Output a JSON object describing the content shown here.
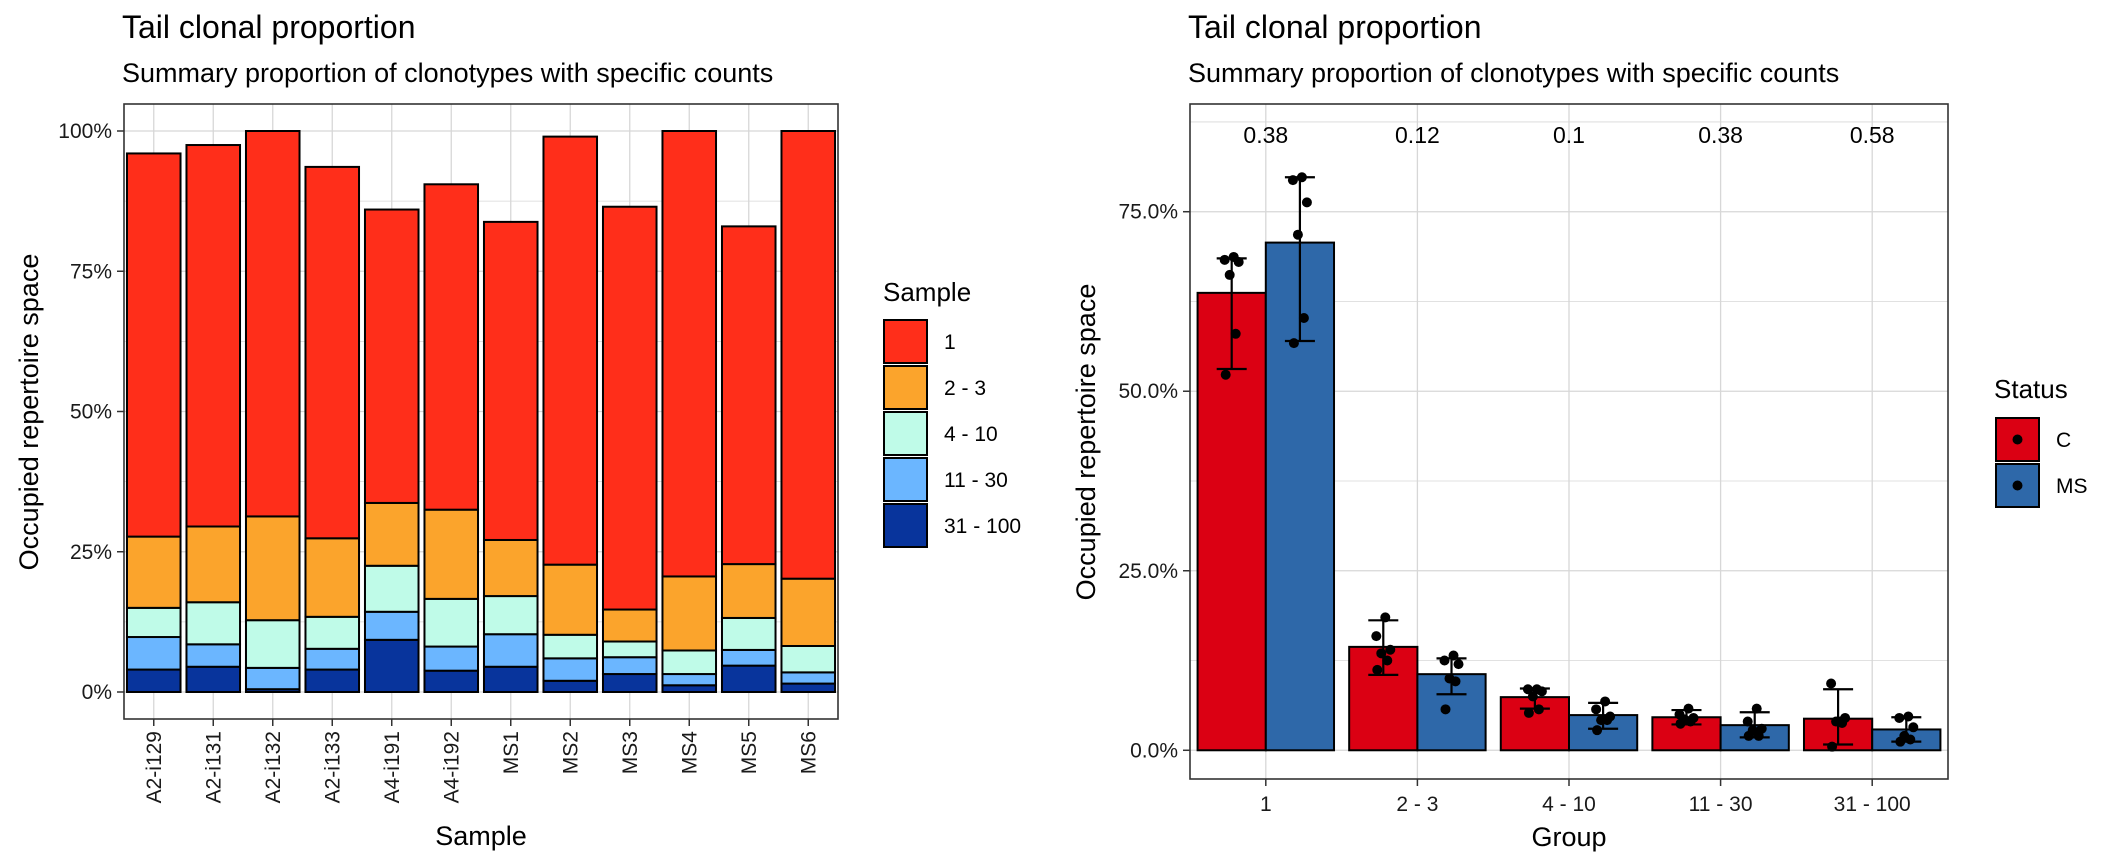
{
  "chart_data": [
    {
      "type": "bar",
      "stacked": true,
      "title": "Tail clonal proportion",
      "subtitle": "Summary proportion of clonotypes with specific counts",
      "xlabel": "Sample",
      "ylabel": "Occupied repertoire space",
      "ylim": [
        0,
        1
      ],
      "yticks": [
        "0%",
        "25%",
        "50%",
        "75%",
        "100%"
      ],
      "grid": true,
      "legend": {
        "title": "Sample",
        "position": "right"
      },
      "categories": [
        "A2-i129",
        "A2-i131",
        "A2-i132",
        "A2-i133",
        "A4-i191",
        "A4-i192",
        "MS1",
        "MS2",
        "MS3",
        "MS4",
        "MS5",
        "MS6"
      ],
      "series": [
        {
          "name": "31 - 100",
          "color": "#08349C",
          "values": [
            0.04,
            0.045,
            0.005,
            0.04,
            0.093,
            0.038,
            0.045,
            0.02,
            0.032,
            0.012,
            0.047,
            0.015
          ]
        },
        {
          "name": "11 - 30",
          "color": "#6BB6FF",
          "values": [
            0.058,
            0.04,
            0.038,
            0.037,
            0.05,
            0.043,
            0.058,
            0.04,
            0.03,
            0.02,
            0.028,
            0.02
          ]
        },
        {
          "name": "4 - 10",
          "color": "#BFFBE8",
          "values": [
            0.052,
            0.075,
            0.085,
            0.057,
            0.082,
            0.085,
            0.068,
            0.042,
            0.028,
            0.042,
            0.057,
            0.047
          ]
        },
        {
          "name": "2 - 3",
          "color": "#FBA42C",
          "values": [
            0.127,
            0.135,
            0.185,
            0.14,
            0.112,
            0.159,
            0.1,
            0.125,
            0.057,
            0.132,
            0.096,
            0.12
          ]
        },
        {
          "name": "1",
          "color": "#FF2E1A",
          "values": [
            0.683,
            0.68,
            0.687,
            0.662,
            0.523,
            0.58,
            0.567,
            0.763,
            0.718,
            0.794,
            0.602,
            0.798
          ]
        }
      ]
    },
    {
      "type": "bar",
      "title": "Tail clonal proportion",
      "subtitle": "Summary proportion of clonotypes with specific counts",
      "xlabel": "Group",
      "ylabel": "Occupied repertoire space",
      "ylim": [
        -0.04,
        0.9
      ],
      "yticks": [
        "0.0%",
        "25.0%",
        "50.0%",
        "75.0%"
      ],
      "grid": true,
      "legend": {
        "title": "Status",
        "position": "right"
      },
      "categories": [
        "1",
        "2 - 3",
        "4 - 10",
        "11 - 30",
        "31 - 100"
      ],
      "p_values": [
        "0.38",
        "0.12",
        "0.1",
        "0.38",
        "0.58"
      ],
      "series": [
        {
          "name": "C",
          "color": "#DB0013",
          "values": [
            0.637,
            0.144,
            0.074,
            0.046,
            0.044
          ],
          "error_low": [
            0.531,
            0.105,
            0.058,
            0.036,
            0.008
          ],
          "error_high": [
            0.685,
            0.181,
            0.086,
            0.056,
            0.085
          ],
          "points": [
            [
              0.523,
              0.58,
              0.662,
              0.68,
              0.683,
              0.687
            ],
            [
              0.112,
              0.125,
              0.135,
              0.14,
              0.159,
              0.185
            ],
            [
              0.052,
              0.057,
              0.075,
              0.082,
              0.085,
              0.085
            ],
            [
              0.037,
              0.04,
              0.043,
              0.045,
              0.05,
              0.058
            ],
            [
              0.005,
              0.038,
              0.04,
              0.045,
              0.093,
              0.04
            ]
          ]
        },
        {
          "name": "MS",
          "color": "#2E68A9",
          "values": [
            0.707,
            0.106,
            0.049,
            0.035,
            0.029
          ],
          "error_low": [
            0.57,
            0.078,
            0.03,
            0.018,
            0.012
          ],
          "error_high": [
            0.798,
            0.128,
            0.066,
            0.053,
            0.046
          ],
          "points": [
            [
              0.567,
              0.602,
              0.718,
              0.763,
              0.794,
              0.798
            ],
            [
              0.057,
              0.096,
              0.1,
              0.12,
              0.125,
              0.132
            ],
            [
              0.028,
              0.042,
              0.042,
              0.047,
              0.057,
              0.068
            ],
            [
              0.02,
              0.02,
              0.028,
              0.03,
              0.04,
              0.058
            ],
            [
              0.012,
              0.015,
              0.02,
              0.032,
              0.045,
              0.047
            ]
          ]
        }
      ]
    }
  ]
}
